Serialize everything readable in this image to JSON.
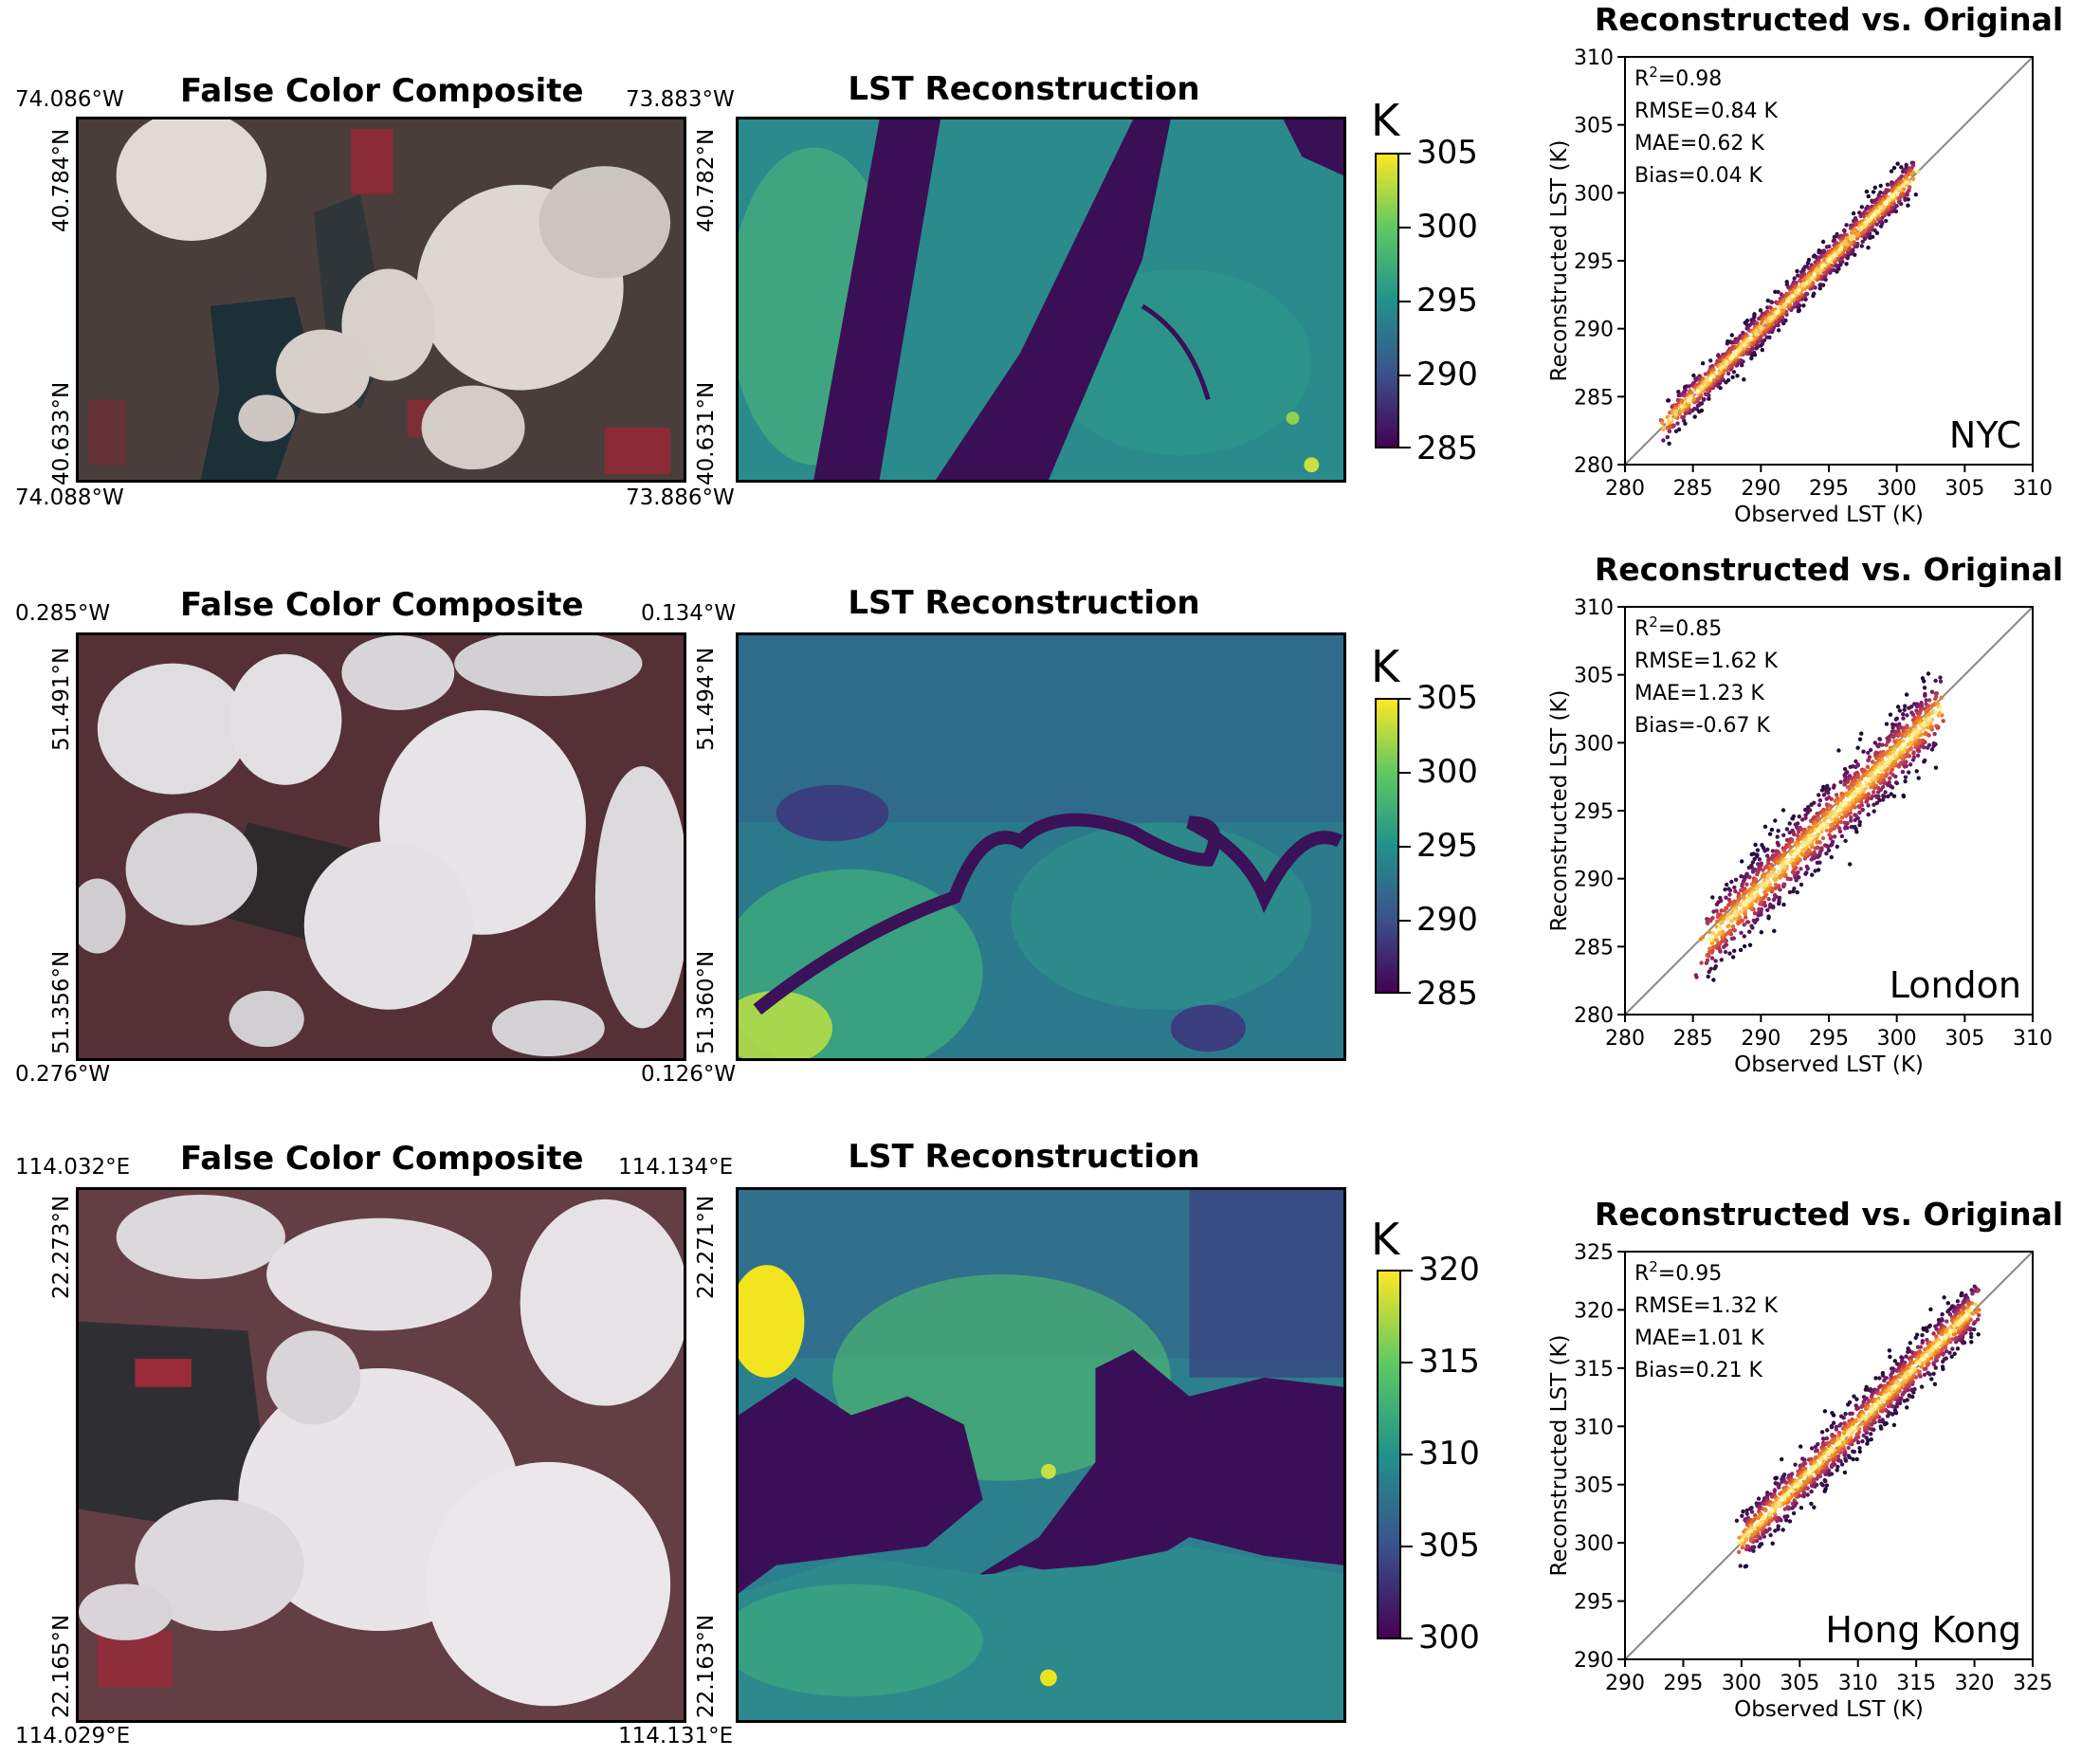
{
  "rows": [
    {
      "fc_title": "False Color Composite",
      "lst_title": "LST Reconstruction",
      "coords": {
        "top_left": "74.086°W",
        "top_right": "73.883°W",
        "bottom_left": "74.088°W",
        "bottom_right": "73.886°W",
        "left_top": "40.784°N",
        "left_bottom": "40.633°N",
        "right_top": "40.782°N",
        "right_bottom": "40.631°N"
      },
      "colorbar": {
        "unit": "K",
        "ticks": [
          "305",
          "300",
          "295",
          "290",
          "285"
        ]
      }
    },
    {
      "fc_title": "False Color Composite",
      "lst_title": "LST Reconstruction",
      "coords": {
        "top_left": "0.285°W",
        "top_right": "0.134°W",
        "bottom_left": "0.276°W",
        "bottom_right": "0.126°W",
        "left_top": "51.491°N",
        "left_bottom": "51.356°N",
        "right_top": "51.494°N",
        "right_bottom": "51.360°N"
      },
      "colorbar": {
        "unit": "K",
        "ticks": [
          "305",
          "300",
          "295",
          "290",
          "285"
        ]
      }
    },
    {
      "fc_title": "False Color Composite",
      "lst_title": "LST Reconstruction",
      "coords": {
        "top_left": "114.032°E",
        "top_right": "114.134°E",
        "bottom_left": "114.029°E",
        "bottom_right": "114.131°E",
        "left_top": "22.273°N",
        "left_bottom": "22.165°N",
        "right_top": "22.271°N",
        "right_bottom": "22.163°N"
      },
      "colorbar": {
        "unit": "K",
        "ticks": [
          "320",
          "315",
          "310",
          "305",
          "300"
        ]
      }
    }
  ],
  "colormap": "viridis",
  "chart_data": [
    {
      "type": "scatter",
      "title": "Reconstructed vs. Original",
      "xlabel": "Observed LST (K)",
      "ylabel": "Reconstructed LST (K)",
      "xlim": [
        280,
        310
      ],
      "ylim": [
        280,
        310
      ],
      "xticks": [
        "280",
        "285",
        "290",
        "295",
        "300",
        "305",
        "310"
      ],
      "yticks": [
        "280",
        "285",
        "290",
        "295",
        "300",
        "305",
        "310"
      ],
      "city": "NYC",
      "stats": [
        {
          "label": "R",
          "sup": "2",
          "value": "=0.98"
        },
        {
          "label": "RMSE=0.84 K"
        },
        {
          "label": "MAE=0.62 K"
        },
        {
          "label": "Bias=0.04 K"
        }
      ],
      "identity_line": true,
      "density_cloud": {
        "x_range": [
          283,
          301
        ],
        "spread": 0.84,
        "bias": 0.04
      }
    },
    {
      "type": "scatter",
      "title": "Reconstructed vs. Original",
      "xlabel": "Observed LST (K)",
      "ylabel": "Reconstructed LST (K)",
      "xlim": [
        280,
        310
      ],
      "ylim": [
        280,
        310
      ],
      "xticks": [
        "280",
        "285",
        "290",
        "295",
        "300",
        "305",
        "310"
      ],
      "yticks": [
        "280",
        "285",
        "290",
        "295",
        "300",
        "305",
        "310"
      ],
      "city": "London",
      "stats": [
        {
          "label": "R",
          "sup": "2",
          "value": "=0.85"
        },
        {
          "label": "RMSE=1.62 K"
        },
        {
          "label": "MAE=1.23 K"
        },
        {
          "label": "Bias=-0.67 K"
        }
      ],
      "identity_line": true,
      "density_cloud": {
        "x_range": [
          286,
          303
        ],
        "spread": 1.62,
        "bias": -0.67
      }
    },
    {
      "type": "scatter",
      "title": "Reconstructed vs. Original",
      "xlabel": "Observed LST (K)",
      "ylabel": "Reconstructed LST (K)",
      "xlim": [
        290,
        325
      ],
      "ylim": [
        290,
        325
      ],
      "xticks": [
        "290",
        "295",
        "300",
        "305",
        "310",
        "315",
        "320",
        "325"
      ],
      "yticks": [
        "290",
        "295",
        "300",
        "305",
        "310",
        "315",
        "320",
        "325"
      ],
      "city": "Hong Kong",
      "stats": [
        {
          "label": "R",
          "sup": "2",
          "value": "=0.95"
        },
        {
          "label": "RMSE=1.32 K"
        },
        {
          "label": "MAE=1.01 K"
        },
        {
          "label": "Bias=0.21 K"
        }
      ],
      "identity_line": true,
      "density_cloud": {
        "x_range": [
          300,
          320
        ],
        "spread": 1.32,
        "bias": 0.21
      }
    }
  ]
}
